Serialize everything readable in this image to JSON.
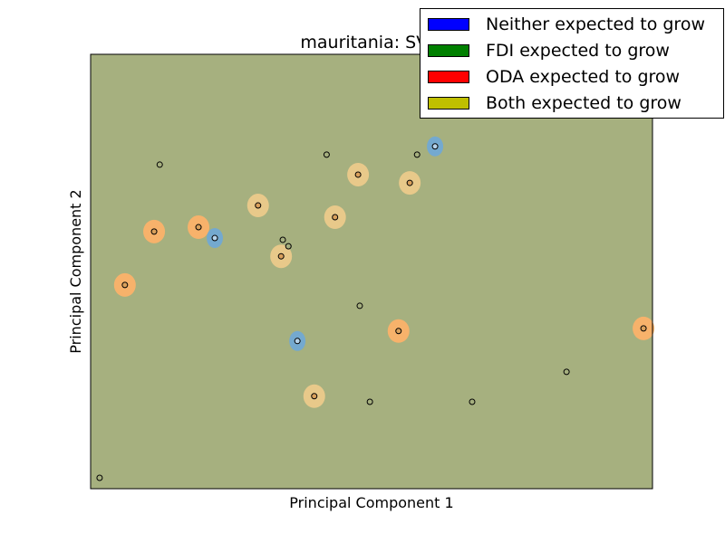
{
  "chart_data": {
    "type": "scatter",
    "title": "mauritania: SVM",
    "xlabel": "Principal Component 1",
    "ylabel": "Principal Component 2",
    "xlim": [
      0,
      100
    ],
    "ylim": [
      0,
      100
    ],
    "x_ticks_visible": false,
    "y_ticks_visible": false,
    "grid": false,
    "background_region_color": "#a6b07f",
    "legend": {
      "placement": "top-right",
      "entries": [
        {
          "label": "Neither expected to grow",
          "color": "#0000ff"
        },
        {
          "label": "FDI expected to grow",
          "color": "#008000"
        },
        {
          "label": "ODA expected to grow",
          "color": "#ff0000"
        },
        {
          "label": "Both expected to grow",
          "color": "#bfbf00"
        }
      ]
    },
    "region_colors": {
      "neither": "#74a9cf",
      "oda": "#f7b26b",
      "both": "#e8c98a"
    },
    "points": [
      {
        "x": 12.3,
        "y": 74.6,
        "region": "none"
      },
      {
        "x": 42.0,
        "y": 76.9,
        "region": "none"
      },
      {
        "x": 58.1,
        "y": 76.9,
        "region": "none"
      },
      {
        "x": 61.3,
        "y": 78.8,
        "region": "neither"
      },
      {
        "x": 47.6,
        "y": 72.3,
        "region": "both"
      },
      {
        "x": 56.8,
        "y": 70.4,
        "region": "both"
      },
      {
        "x": 29.8,
        "y": 65.2,
        "region": "both"
      },
      {
        "x": 43.5,
        "y": 62.5,
        "region": "both"
      },
      {
        "x": 11.3,
        "y": 59.2,
        "region": "oda"
      },
      {
        "x": 19.2,
        "y": 60.2,
        "region": "oda"
      },
      {
        "x": 22.1,
        "y": 57.7,
        "region": "neither"
      },
      {
        "x": 34.2,
        "y": 57.3,
        "region": "none"
      },
      {
        "x": 35.2,
        "y": 55.8,
        "region": "none"
      },
      {
        "x": 33.9,
        "y": 53.5,
        "region": "both"
      },
      {
        "x": 6.1,
        "y": 46.9,
        "region": "oda"
      },
      {
        "x": 47.9,
        "y": 42.1,
        "region": "none"
      },
      {
        "x": 54.8,
        "y": 36.3,
        "region": "oda"
      },
      {
        "x": 98.4,
        "y": 36.9,
        "region": "oda"
      },
      {
        "x": 36.8,
        "y": 34.0,
        "region": "neither"
      },
      {
        "x": 84.7,
        "y": 26.9,
        "region": "none"
      },
      {
        "x": 39.8,
        "y": 21.3,
        "region": "both"
      },
      {
        "x": 49.7,
        "y": 20.0,
        "region": "none"
      },
      {
        "x": 67.9,
        "y": 20.0,
        "region": "none"
      },
      {
        "x": 1.6,
        "y": 2.5,
        "region": "none"
      }
    ]
  }
}
